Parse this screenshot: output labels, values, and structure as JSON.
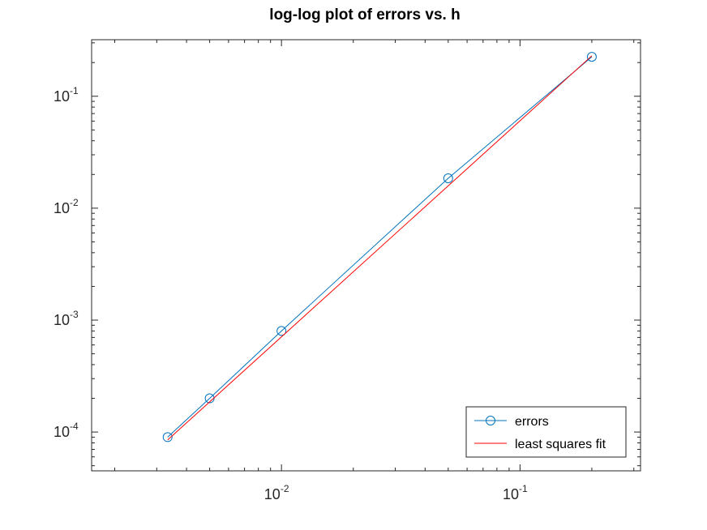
{
  "chart_data": {
    "type": "line",
    "title": "log-log plot of errors vs. h",
    "xlabel": "",
    "ylabel": "",
    "xscale": "log",
    "yscale": "log",
    "xlim": [
      0.0016,
      0.32
    ],
    "ylim": [
      4.5e-05,
      0.32
    ],
    "grid": false,
    "legend_position": "bottom-right",
    "x_ticks": [
      {
        "value": 0.01,
        "base": "10",
        "exp": "-2"
      },
      {
        "value": 0.1,
        "base": "10",
        "exp": "-1"
      }
    ],
    "y_ticks": [
      {
        "value": 0.0001,
        "base": "10",
        "exp": "-4"
      },
      {
        "value": 0.001,
        "base": "10",
        "exp": "-3"
      },
      {
        "value": 0.01,
        "base": "10",
        "exp": "-2"
      },
      {
        "value": 0.1,
        "base": "10",
        "exp": "-1"
      }
    ],
    "series": [
      {
        "name": "errors",
        "color": "#0072bd",
        "marker": "circle",
        "x": [
          0.003333,
          0.005,
          0.01,
          0.05,
          0.2
        ],
        "y": [
          9e-05,
          0.0002,
          0.0008,
          0.0185,
          0.225
        ]
      },
      {
        "name": "least squares fit",
        "color": "#ff0000",
        "marker": "none",
        "x": [
          0.003333,
          0.2
        ],
        "y": [
          8.5e-05,
          0.23
        ]
      }
    ]
  }
}
